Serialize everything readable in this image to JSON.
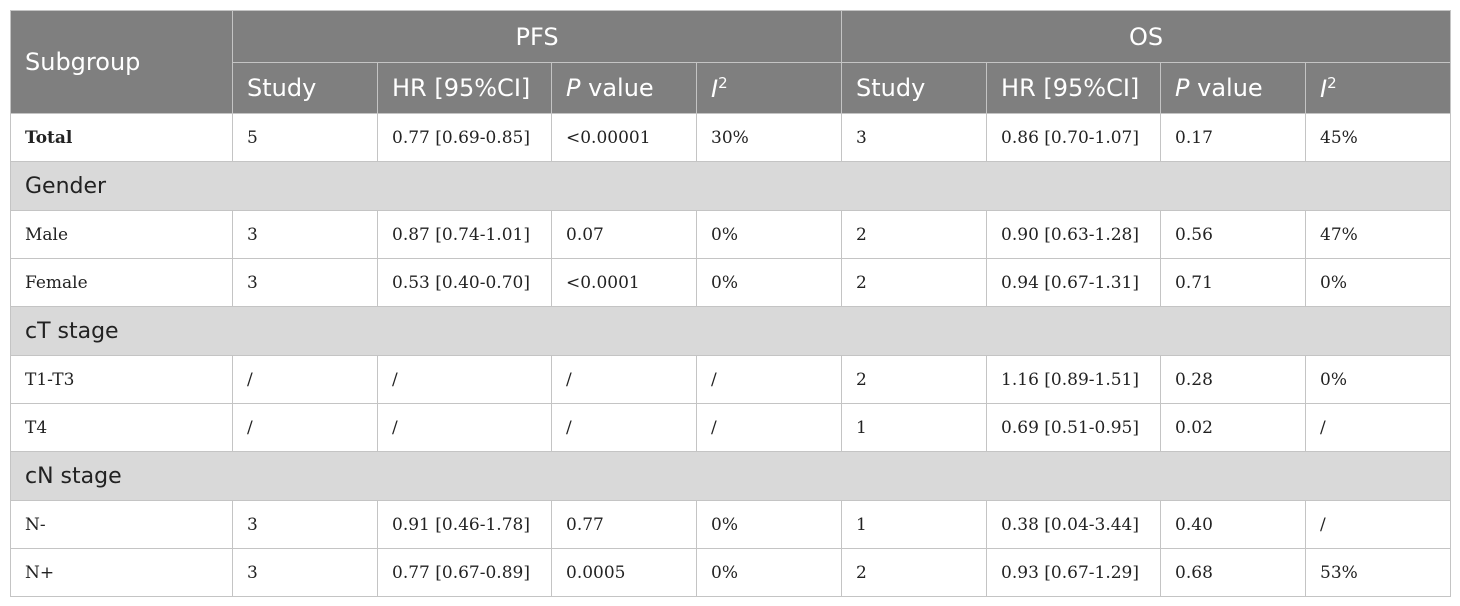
{
  "header": {
    "subgroup": "Subgroup",
    "pfs": "PFS",
    "os": "OS",
    "study": "Study",
    "hr": "HR [95%CI]",
    "p_letter": "P",
    "p_word": " value",
    "i_letter": "I",
    "i_sup": "2"
  },
  "total": {
    "label": "Total",
    "pfs": [
      "5",
      "0.77 [0.69-0.85]",
      "<0.00001",
      "30%"
    ],
    "os": [
      "3",
      "0.86 [0.70-1.07]",
      "0.17",
      "45%"
    ]
  },
  "sections": [
    {
      "title": "Gender",
      "rows": [
        {
          "label": "Male",
          "pfs": [
            "3",
            "0.87 [0.74-1.01]",
            "0.07",
            "0%"
          ],
          "os": [
            "2",
            "0.90 [0.63-1.28]",
            "0.56",
            "47%"
          ]
        },
        {
          "label": "Female",
          "pfs": [
            "3",
            "0.53 [0.40-0.70]",
            "<0.0001",
            "0%"
          ],
          "os": [
            "2",
            "0.94 [0.67-1.31]",
            "0.71",
            "0%"
          ]
        }
      ]
    },
    {
      "title": "cT stage",
      "rows": [
        {
          "label": "T1-T3",
          "pfs": [
            "/",
            "/",
            "/",
            "/"
          ],
          "os": [
            "2",
            "1.16 [0.89-1.51]",
            "0.28",
            "0%"
          ]
        },
        {
          "label": "T4",
          "pfs": [
            "/",
            "/",
            "/",
            "/"
          ],
          "os": [
            "1",
            "0.69 [0.51-0.95]",
            "0.02",
            "/"
          ]
        }
      ]
    },
    {
      "title": "cN stage",
      "rows": [
        {
          "label": "N-",
          "pfs": [
            "3",
            "0.91 [0.46-1.78]",
            "0.77",
            "0%"
          ],
          "os": [
            "1",
            "0.38 [0.04-3.44]",
            "0.40",
            "/"
          ]
        },
        {
          "label": "N+",
          "pfs": [
            "3",
            "0.77 [0.67-0.89]",
            "0.0005",
            "0%"
          ],
          "os": [
            "2",
            "0.93 [0.67-1.29]",
            "0.68",
            "53%"
          ]
        }
      ]
    }
  ]
}
